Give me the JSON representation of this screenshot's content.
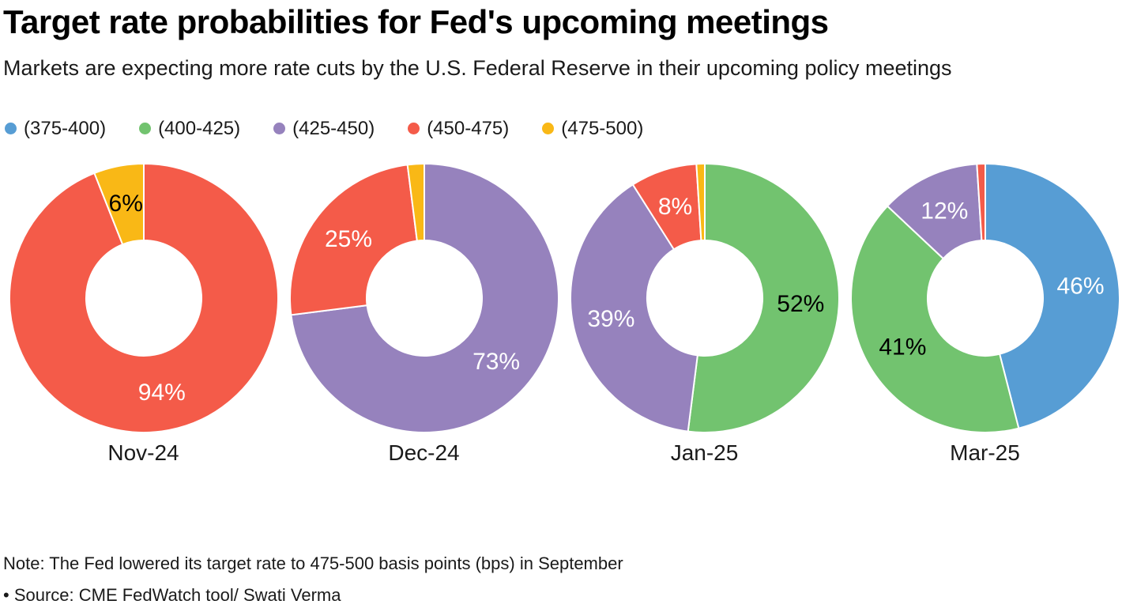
{
  "title": "Target rate probabilities for Fed's upcoming meetings",
  "subtitle": "Markets are expecting more rate cuts by the U.S. Federal Reserve in their upcoming policy meetings",
  "legend": [
    {
      "label": "(375-400)",
      "color": "#579DD4"
    },
    {
      "label": "(400-425)",
      "color": "#72C36F"
    },
    {
      "label": "(425-450)",
      "color": "#9682BD"
    },
    {
      "label": "(450-475)",
      "color": "#F45B49"
    },
    {
      "label": "(475-500)",
      "color": "#F9B816"
    }
  ],
  "note": "Note: The Fed lowered its target rate to 475-500 basis points (bps) in September",
  "source": "• Source: CME FedWatch tool/ Swati Verma",
  "chart_data": [
    {
      "type": "pie",
      "subtype": "donut",
      "title": "Nov-24",
      "start_angle_deg": 0,
      "direction": "clockwise",
      "slices": [
        {
          "category": "(450-475)",
          "value": 94,
          "color": "#F45B49",
          "label": "94%",
          "label_color": "#FFFFFF"
        },
        {
          "category": "(475-500)",
          "value": 6,
          "color": "#F9B816",
          "label": "6%",
          "label_color": "#000000"
        }
      ]
    },
    {
      "type": "pie",
      "subtype": "donut",
      "title": "Dec-24",
      "start_angle_deg": 0,
      "direction": "clockwise",
      "slices": [
        {
          "category": "(425-450)",
          "value": 73,
          "color": "#9682BD",
          "label": "73%",
          "label_color": "#FFFFFF"
        },
        {
          "category": "(450-475)",
          "value": 25,
          "color": "#F45B49",
          "label": "25%",
          "label_color": "#FFFFFF"
        },
        {
          "category": "(475-500)",
          "value": 2,
          "color": "#F9B816",
          "label": "",
          "label_color": "#000000"
        }
      ]
    },
    {
      "type": "pie",
      "subtype": "donut",
      "title": "Jan-25",
      "start_angle_deg": 0,
      "direction": "clockwise",
      "slices": [
        {
          "category": "(400-425)",
          "value": 52,
          "color": "#72C36F",
          "label": "52%",
          "label_color": "#000000"
        },
        {
          "category": "(425-450)",
          "value": 39,
          "color": "#9682BD",
          "label": "39%",
          "label_color": "#FFFFFF"
        },
        {
          "category": "(450-475)",
          "value": 8,
          "color": "#F45B49",
          "label": "8%",
          "label_color": "#FFFFFF"
        },
        {
          "category": "(475-500)",
          "value": 1,
          "color": "#F9B816",
          "label": "",
          "label_color": "#000000"
        }
      ]
    },
    {
      "type": "pie",
      "subtype": "donut",
      "title": "Mar-25",
      "start_angle_deg": 0,
      "direction": "clockwise",
      "slices": [
        {
          "category": "(375-400)",
          "value": 46,
          "color": "#579DD4",
          "label": "46%",
          "label_color": "#FFFFFF"
        },
        {
          "category": "(400-425)",
          "value": 41,
          "color": "#72C36F",
          "label": "41%",
          "label_color": "#000000"
        },
        {
          "category": "(425-450)",
          "value": 12,
          "color": "#9682BD",
          "label": "12%",
          "label_color": "#FFFFFF"
        },
        {
          "category": "(450-475)",
          "value": 1,
          "color": "#F45B49",
          "label": "",
          "label_color": "#FFFFFF"
        }
      ]
    }
  ]
}
